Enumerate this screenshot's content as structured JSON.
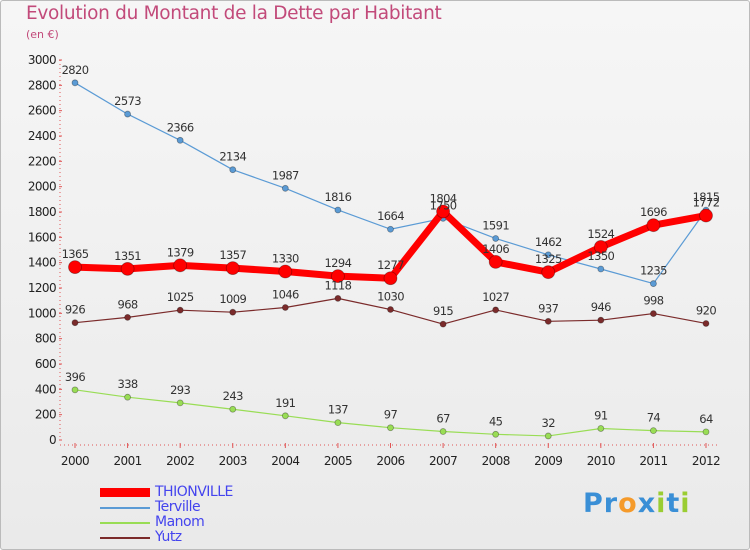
{
  "chart_data": {
    "type": "line",
    "title": "Evolution du Montant de la Dette par Habitant",
    "subtitle": "(en €)",
    "x": [
      "2000",
      "2001",
      "2002",
      "2003",
      "2004",
      "2005",
      "2006",
      "2007",
      "2008",
      "2009",
      "2010",
      "2011",
      "2012"
    ],
    "ylim": [
      0,
      3000
    ],
    "yticks": [
      0,
      200,
      400,
      600,
      800,
      1000,
      1200,
      1400,
      1600,
      1800,
      2000,
      2200,
      2400,
      2600,
      2800,
      3000
    ],
    "grid": false,
    "legend_position": "bottom-left",
    "series": [
      {
        "name": "Terville",
        "color": "#5b9bd5",
        "values": [
          2820,
          2573,
          2366,
          2134,
          1987,
          1816,
          1664,
          1750,
          1591,
          1462,
          1350,
          1235,
          1815
        ]
      },
      {
        "name": "Manom",
        "color": "#99dd55",
        "values": [
          396,
          338,
          293,
          243,
          191,
          137,
          97,
          67,
          45,
          32,
          91,
          74,
          64
        ]
      },
      {
        "name": "Yutz",
        "color": "#7b2b2b",
        "values": [
          926,
          968,
          1025,
          1009,
          1046,
          1118,
          1030,
          915,
          1027,
          937,
          946,
          998,
          920
        ]
      },
      {
        "name": "THIONVILLE",
        "color": "#ff0000",
        "values": [
          1365,
          1351,
          1379,
          1357,
          1330,
          1294,
          1277,
          1804,
          1406,
          1325,
          1524,
          1696,
          1772
        ]
      }
    ]
  },
  "legend": {
    "items": [
      {
        "name": "THIONVILLE",
        "color": "#ff0000",
        "text_color": "#4444ee"
      },
      {
        "name": "Terville",
        "color": "#5b9bd5",
        "text_color": "#4444ee"
      },
      {
        "name": "Manom",
        "color": "#99dd55",
        "text_color": "#4444ee"
      },
      {
        "name": "Yutz",
        "color": "#7b2b2b",
        "text_color": "#4444ee"
      }
    ]
  },
  "logo": {
    "letters": [
      "P",
      "r",
      "o",
      "x",
      "i",
      "t",
      "i"
    ],
    "colors": [
      "#3a8fd6",
      "#3a8fd6",
      "#f59a2a",
      "#3a8fd6",
      "#9acd32",
      "#3a8fd6",
      "#9acd32"
    ]
  }
}
